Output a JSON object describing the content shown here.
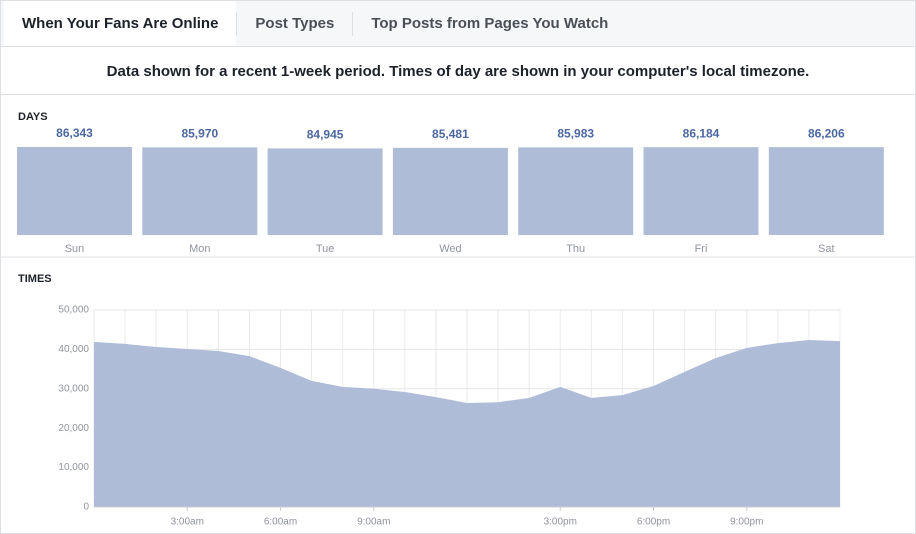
{
  "tabs": [
    "When Your Fans Are Online",
    "Post Types",
    "Top Posts from Pages You Watch"
  ],
  "note": "Data shown for a recent 1-week period. Times of day are shown in your computer's local timezone.",
  "chart_data": [
    {
      "type": "bar",
      "title": "DAYS",
      "color": "#afbcd8",
      "categories": [
        "Sun",
        "Mon",
        "Tue",
        "Wed",
        "Thu",
        "Fri",
        "Sat"
      ],
      "values": [
        86343,
        85970,
        84945,
        85481,
        85983,
        86184,
        86206
      ],
      "value_labels": [
        "86,343",
        "85,970",
        "84,945",
        "85,481",
        "85,983",
        "86,184",
        "86,206"
      ],
      "ylim": [
        0,
        86343
      ]
    },
    {
      "type": "area",
      "title": "TIMES",
      "color": "#afbcd8",
      "grid": true,
      "x": [
        0,
        1,
        2,
        3,
        4,
        5,
        6,
        7,
        8,
        9,
        10,
        11,
        12,
        13,
        14,
        15,
        16,
        17,
        18,
        19,
        20,
        21,
        22,
        23,
        24
      ],
      "values": [
        41900,
        41400,
        40600,
        40100,
        39600,
        38300,
        35300,
        32000,
        30500,
        30000,
        29200,
        27900,
        26400,
        26600,
        27700,
        30500,
        27700,
        28400,
        30700,
        34300,
        37800,
        40400,
        41600,
        42400,
        42100
      ],
      "xlim": [
        0,
        24
      ],
      "xticks": [
        {
          "value": 3,
          "label": "3:00am"
        },
        {
          "value": 6,
          "label": "6:00am"
        },
        {
          "value": 9,
          "label": "9:00am"
        },
        {
          "value": 15,
          "label": "3:00pm"
        },
        {
          "value": 18,
          "label": "6:00pm"
        },
        {
          "value": 21,
          "label": "9:00pm"
        }
      ],
      "ylim": [
        0,
        50000
      ],
      "yticks": [
        0,
        {
          "value": 10000,
          "label": "10,000"
        },
        {
          "value": 20000,
          "label": "20,000"
        },
        {
          "value": 30000,
          "label": "30,000"
        },
        {
          "value": 40000,
          "label": "40,000"
        },
        {
          "value": 50000,
          "label": "50,000"
        }
      ]
    }
  ]
}
